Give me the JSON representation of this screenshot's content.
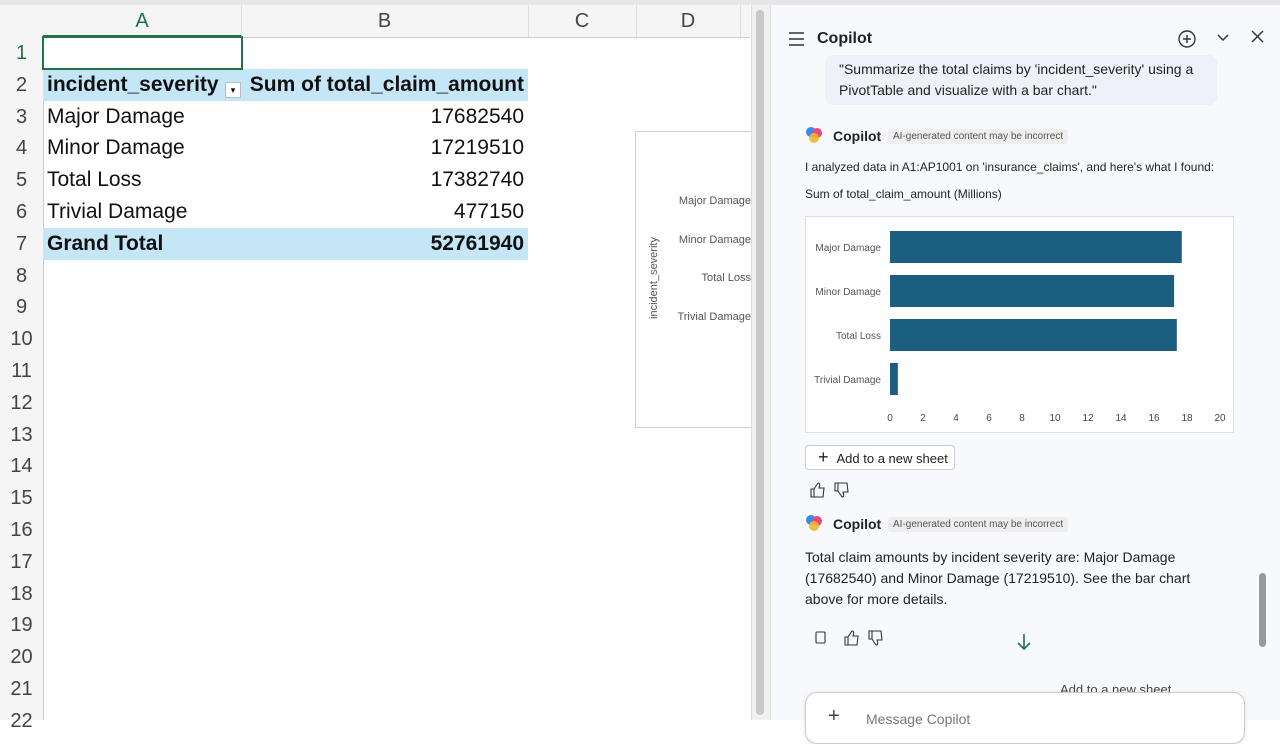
{
  "spreadsheet": {
    "columns": [
      "A",
      "B",
      "C",
      "D"
    ],
    "row_numbers": [
      1,
      2,
      3,
      4,
      5,
      6,
      7,
      8,
      9,
      10,
      11,
      12,
      13,
      14,
      15,
      16,
      17,
      18,
      19,
      20,
      21,
      22
    ],
    "pivot": {
      "headers": [
        "incident_severity",
        "Sum of total_claim_amount"
      ],
      "rows": [
        [
          "Major Damage",
          17682540
        ],
        [
          "Minor Damage",
          17219510
        ],
        [
          "Total Loss",
          17382740
        ],
        [
          "Trivial Damage",
          477150
        ]
      ],
      "total": [
        "Grand Total",
        52761940
      ]
    },
    "embedded_chart": {
      "axis_label": "incident_severity",
      "categories": [
        "Major Damage",
        "Minor Damage",
        "Total Loss",
        "Trivial Damage"
      ]
    }
  },
  "copilot": {
    "title": "Copilot",
    "user_message": "\"Summarize the total claims by 'incident_severity' using a PivotTable and visualize with a bar chart.\"",
    "responses": [
      {
        "author": "Copilot",
        "badge": "AI-generated content may be incorrect",
        "text": "I analyzed data in A1:AP1001 on 'insurance_claims', and here's what I found:",
        "button": "Add to a new sheet"
      },
      {
        "author": "Copilot",
        "badge": "AI-generated content may be incorrect",
        "text": "Total claim amounts by incident severity are: Major Damage (17682540) and Minor Damage (17219510). See the bar chart above for more details."
      }
    ],
    "floating_button": "Add to a new sheet",
    "input_placeholder": "Message Copilot"
  },
  "chart_data": {
    "type": "bar",
    "orientation": "horizontal",
    "title": "Sum of total_claim_amount (Millions)",
    "categories": [
      "Major Damage",
      "Minor Damage",
      "Total Loss",
      "Trivial Damage"
    ],
    "values": [
      17.68254,
      17.21951,
      17.38274,
      0.47715
    ],
    "color": "#1b5e80",
    "xlim": [
      0,
      20
    ],
    "xticks": [
      0,
      2,
      4,
      6,
      8,
      10,
      12,
      14,
      16,
      18,
      20
    ],
    "grid": false
  }
}
